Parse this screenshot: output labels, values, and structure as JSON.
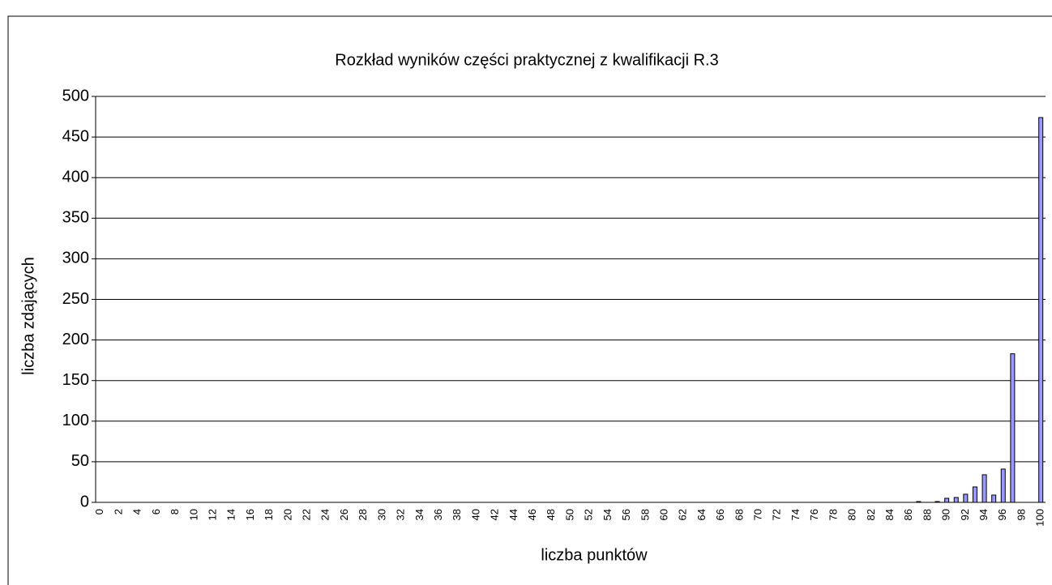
{
  "chart_data": {
    "type": "bar",
    "title": "Rozkład wyników części praktycznej z kwalifikacji R.3",
    "x_label": "liczba punktów",
    "y_label": "liczba zdających",
    "categories": [
      0,
      null,
      2,
      null,
      4,
      null,
      6,
      null,
      8,
      null,
      10,
      null,
      12,
      null,
      14,
      null,
      16,
      null,
      18,
      null,
      20,
      null,
      22,
      null,
      24,
      null,
      26,
      null,
      28,
      null,
      30,
      null,
      32,
      null,
      34,
      null,
      36,
      null,
      38,
      null,
      40,
      null,
      42,
      null,
      44,
      null,
      46,
      null,
      48,
      null,
      50,
      null,
      52,
      null,
      54,
      null,
      56,
      null,
      58,
      null,
      60,
      null,
      62,
      null,
      64,
      null,
      66,
      null,
      68,
      null,
      70,
      null,
      72,
      null,
      74,
      null,
      76,
      null,
      78,
      null,
      80,
      null,
      82,
      null,
      84,
      null,
      86,
      null,
      88,
      null,
      90,
      null,
      92,
      null,
      94,
      null,
      96,
      null,
      98,
      null,
      100
    ],
    "values": [
      0,
      0,
      0,
      0,
      0,
      0,
      0,
      0,
      0,
      0,
      0,
      0,
      0,
      0,
      0,
      0,
      0,
      0,
      0,
      0,
      0,
      0,
      0,
      0,
      0,
      0,
      0,
      0,
      0,
      0,
      0,
      0,
      0,
      0,
      0,
      0,
      0,
      0,
      0,
      0,
      0,
      0,
      0,
      0,
      0,
      0,
      0,
      0,
      0,
      0,
      0,
      0,
      0,
      0,
      0,
      0,
      0,
      0,
      0,
      0,
      0,
      0,
      0,
      0,
      0,
      0,
      0,
      0,
      0,
      0,
      0,
      0,
      0,
      0,
      0,
      0,
      0,
      0,
      0,
      0,
      0,
      0,
      0,
      0,
      0,
      0,
      0,
      1,
      0,
      1,
      5,
      6,
      10,
      19,
      34,
      9,
      41,
      183,
      0,
      0,
      474
    ],
    "color": "#9999ff",
    "ylim": [
      0,
      500
    ],
    "yticks": [
      0,
      50,
      100,
      150,
      200,
      250,
      300,
      350,
      400,
      450,
      500
    ],
    "grid": true
  }
}
